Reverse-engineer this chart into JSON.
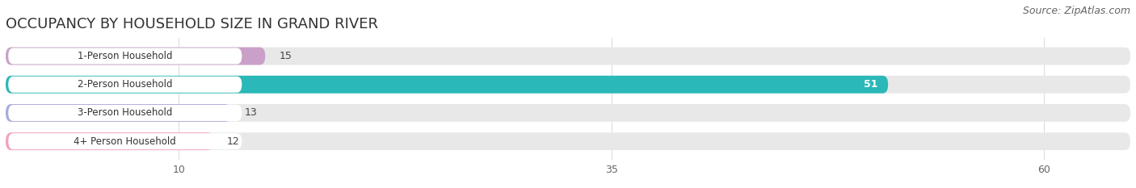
{
  "title": "OCCUPANCY BY HOUSEHOLD SIZE IN GRAND RIVER",
  "source": "Source: ZipAtlas.com",
  "categories": [
    "1-Person Household",
    "2-Person Household",
    "3-Person Household",
    "4+ Person Household"
  ],
  "values": [
    15,
    51,
    13,
    12
  ],
  "bar_colors": [
    "#c9a0c8",
    "#2ab8b8",
    "#aaaadd",
    "#f4a0b8"
  ],
  "value_label_colors": [
    "#555555",
    "#ffffff",
    "#555555",
    "#555555"
  ],
  "xlim": [
    0,
    65
  ],
  "xticks": [
    10,
    35,
    60
  ],
  "background_color": "#ffffff",
  "bar_bg_color": "#e8e8e8",
  "title_fontsize": 13,
  "source_fontsize": 9,
  "bar_height": 0.62,
  "figsize": [
    14.06,
    2.33
  ],
  "dpi": 100
}
